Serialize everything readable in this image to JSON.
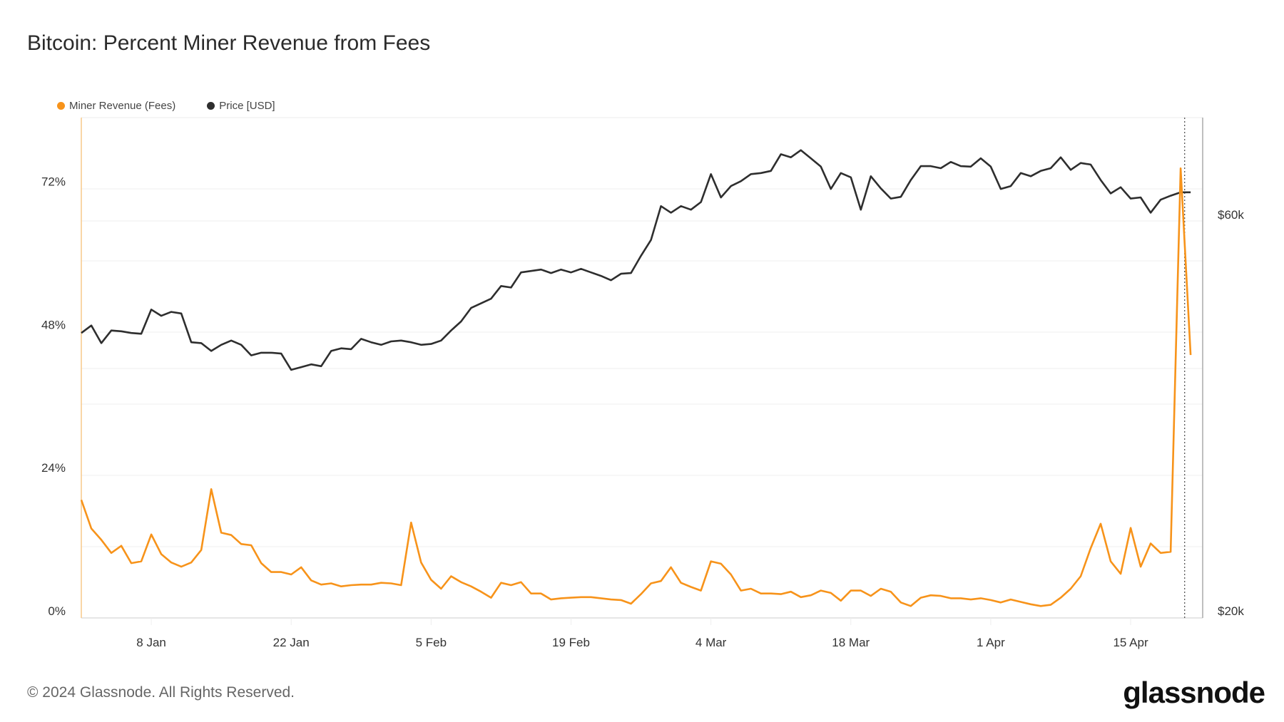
{
  "colors": {
    "fees": "#f7931a",
    "price": "#2e2e2e"
  },
  "footer": "© 2024 Glassnode. All Rights Reserved.",
  "logo": "glassnode",
  "chart_data": {
    "type": "line",
    "title": "Bitcoin: Percent Miner Revenue from Fees",
    "legend": [
      {
        "name": "Miner Revenue (Fees)",
        "color": "#f7931a"
      },
      {
        "name": "Price [USD]",
        "color": "#2e2e2e"
      }
    ],
    "legend_position": "top-left",
    "x_start": "2024-01-01",
    "x_unit": "day",
    "x_ticks": [
      {
        "day": 7,
        "label": "8 Jan"
      },
      {
        "day": 21,
        "label": "22 Jan"
      },
      {
        "day": 35,
        "label": "5 Feb"
      },
      {
        "day": 49,
        "label": "19 Feb"
      },
      {
        "day": 63,
        "label": "4 Mar"
      },
      {
        "day": 77,
        "label": "18 Mar"
      },
      {
        "day": 91,
        "label": "1 Apr"
      },
      {
        "day": 105,
        "label": "15 Apr"
      }
    ],
    "y_left": {
      "label": "",
      "ticks": [
        {
          "value": 0,
          "label": "0%"
        },
        {
          "value": 24,
          "label": "24%"
        },
        {
          "value": 48,
          "label": "48%"
        },
        {
          "value": 72,
          "label": "72%"
        }
      ],
      "unit": "%"
    },
    "y_right": {
      "label": "",
      "scale": "log",
      "ticks": [
        {
          "value": 20000,
          "label": "$20k"
        },
        {
          "value": 60000,
          "label": "$60k"
        }
      ]
    },
    "marker_day": 110.4,
    "grid": true,
    "series": [
      {
        "name": "Miner Revenue (Fees)",
        "axis": "left",
        "values": [
          18.6,
          13.8,
          11.9,
          9.7,
          10.9,
          8.0,
          8.3,
          12.8,
          9.5,
          8.1,
          7.4,
          8.1,
          10.2,
          20.4,
          13.1,
          12.7,
          11.2,
          11.0,
          8.0,
          6.5,
          6.5,
          6.1,
          7.3,
          5.1,
          4.4,
          4.6,
          4.1,
          4.3,
          4.4,
          4.4,
          4.7,
          4.6,
          4.3,
          14.8,
          8.1,
          5.2,
          3.7,
          5.8,
          4.8,
          4.1,
          3.2,
          2.2,
          4.7,
          4.3,
          4.8,
          2.9,
          2.9,
          1.9,
          2.1,
          2.2,
          2.3,
          2.3,
          2.1,
          1.9,
          1.8,
          1.2,
          2.8,
          4.6,
          5.0,
          7.3,
          4.7,
          4.0,
          3.4,
          8.3,
          7.9,
          6.1,
          3.4,
          3.7,
          2.9,
          2.9,
          2.8,
          3.2,
          2.3,
          2.6,
          3.4,
          3.0,
          1.7,
          3.4,
          3.4,
          2.5,
          3.7,
          3.2,
          1.4,
          0.8,
          2.2,
          2.6,
          2.5,
          2.1,
          2.1,
          1.9,
          2.1,
          1.8,
          1.4,
          1.9,
          1.5,
          1.1,
          0.8,
          1.0,
          2.2,
          3.7,
          5.8,
          10.5,
          14.6,
          8.3,
          6.2,
          13.9,
          7.4,
          11.3,
          9.7,
          9.9,
          74.2,
          42.9
        ]
      },
      {
        "name": "Price [USD]",
        "axis": "right",
        "values": [
          43200,
          44100,
          42000,
          43500,
          43400,
          43200,
          43100,
          46100,
          45300,
          45800,
          45600,
          42100,
          42000,
          41100,
          41800,
          42300,
          41800,
          40600,
          40900,
          40900,
          40800,
          39000,
          39300,
          39600,
          39400,
          41100,
          41400,
          41300,
          42500,
          42100,
          41800,
          42200,
          42300,
          42100,
          41800,
          41900,
          42300,
          43500,
          44600,
          46300,
          46900,
          47500,
          49200,
          49000,
          51100,
          51300,
          51500,
          51000,
          51500,
          51100,
          51600,
          51100,
          50600,
          50000,
          50900,
          51000,
          53500,
          55900,
          61400,
          60300,
          61400,
          60800,
          62100,
          67100,
          62900,
          64900,
          65800,
          67100,
          67300,
          67700,
          70900,
          70300,
          71700,
          70100,
          68500,
          64400,
          67300,
          66500,
          60800,
          66700,
          64500,
          62700,
          63000,
          66000,
          68600,
          68600,
          68200,
          69400,
          68600,
          68500,
          70100,
          68500,
          64400,
          64900,
          67300,
          66700,
          67700,
          68200,
          70300,
          67900,
          69200,
          68900,
          66000,
          63600,
          64700,
          62700,
          62900,
          60300,
          62500,
          63200,
          63800,
          63800
        ]
      }
    ]
  }
}
